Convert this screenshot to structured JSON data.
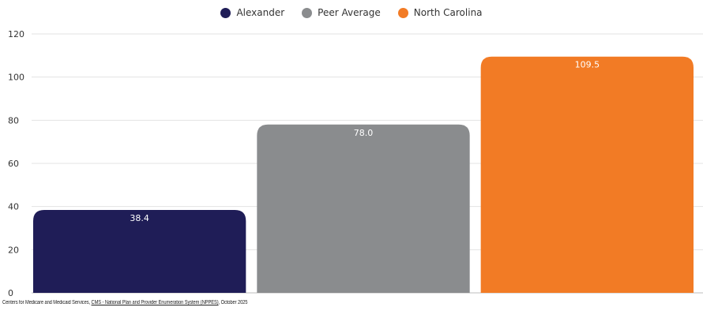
{
  "legend": [
    {
      "label": "Alexander",
      "color": "#1f1d57"
    },
    {
      "label": "Peer Average",
      "color": "#8a8c8e"
    },
    {
      "label": "North Carolina",
      "color": "#f27b25"
    }
  ],
  "chart_data": {
    "type": "bar",
    "categories": [
      "Alexander",
      "Peer Average",
      "North Carolina"
    ],
    "values": [
      38.4,
      78.0,
      109.5
    ],
    "value_labels": [
      "38.4",
      "78.0",
      "109.5"
    ],
    "colors": [
      "#1f1d57",
      "#8a8c8e",
      "#f27b25"
    ],
    "ylim": [
      0,
      120
    ],
    "yticks": [
      0,
      20,
      40,
      60,
      80,
      100,
      120
    ],
    "grid": true,
    "legend_position": "top-center",
    "title": "",
    "xlabel": "",
    "ylabel": ""
  },
  "source": {
    "prefix": "Centers for Medicare and Medicaid Services, ",
    "link_text": "CMS - National Plan and Provider Enumeration System (NPPES)",
    "suffix": ", October 2025"
  }
}
